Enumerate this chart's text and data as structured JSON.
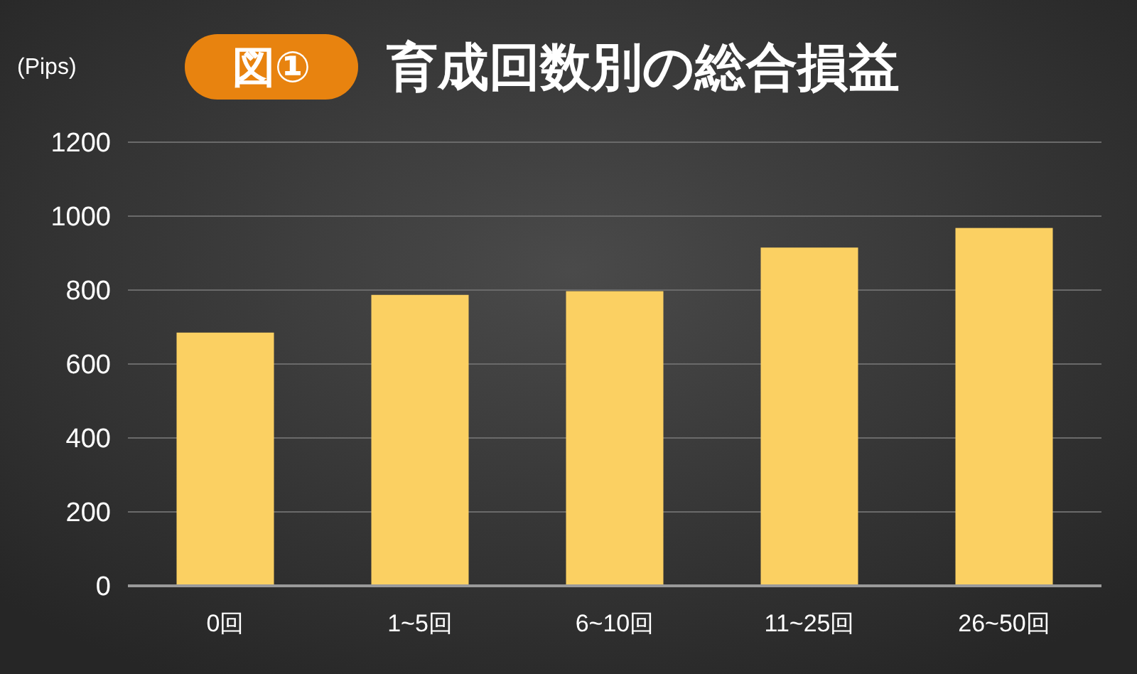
{
  "chart_data": {
    "type": "bar",
    "title": "育成回数別の総合損益",
    "annotations": [
      "図①"
    ],
    "ylabel": "(Pips)",
    "categories": [
      "0回",
      "1~5回",
      "6~10回",
      "11~25回",
      "26~50回"
    ],
    "values": [
      685,
      787,
      797,
      915,
      968
    ],
    "color": "#fbd062",
    "ylim": [
      0,
      1200
    ],
    "yticks": [
      0,
      200,
      400,
      600,
      800,
      1000,
      1200
    ],
    "grid": "y"
  }
}
